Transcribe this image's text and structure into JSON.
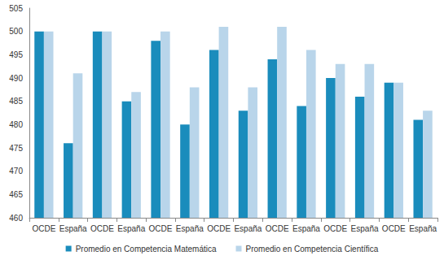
{
  "chart_data": {
    "type": "bar",
    "categories": [
      "OCDE",
      "España",
      "OCDE",
      "España",
      "OCDE",
      "España",
      "OCDE",
      "España",
      "OCDE",
      "España",
      "OCDE",
      "España",
      "OCDE",
      "España"
    ],
    "series": [
      {
        "name": "Promedio en Competencia Matemática",
        "color": "#1a8cbc",
        "values": [
          500,
          476,
          500,
          485,
          498,
          480,
          496,
          483,
          494,
          484,
          490,
          486,
          489,
          481
        ]
      },
      {
        "name": "Promedio en Competencia Científica",
        "color": "#b9d5ea",
        "values": [
          500,
          491,
          500,
          487,
          500,
          488,
          501,
          488,
          501,
          496,
          493,
          493,
          489,
          483
        ]
      }
    ],
    "ylim": [
      460,
      505
    ],
    "yticks": [
      460,
      465,
      470,
      475,
      480,
      485,
      490,
      495,
      500,
      505
    ],
    "grid": false,
    "legend": "bottom"
  }
}
